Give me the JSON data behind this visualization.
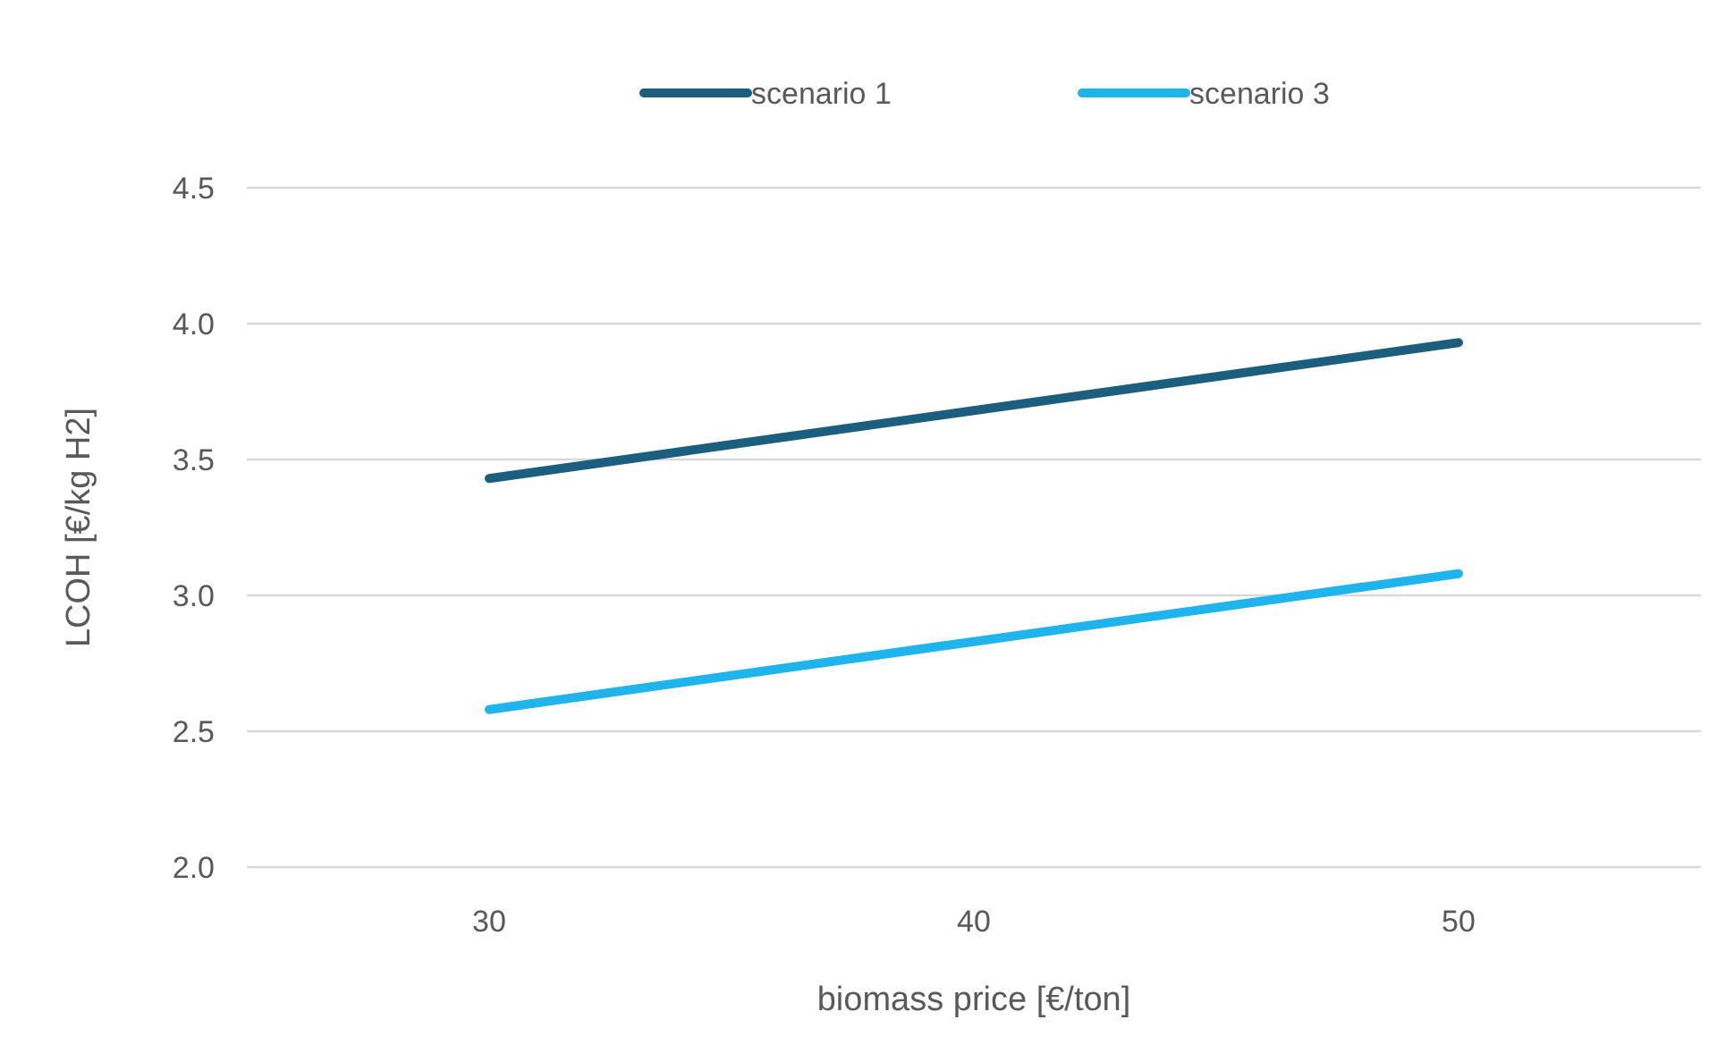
{
  "chart_data": {
    "type": "line",
    "xlabel": "biomass price [€/ton]",
    "ylabel": "LCOH [€/kg H2]",
    "categories": [
      "30",
      "40",
      "50"
    ],
    "series": [
      {
        "name": "scenario 1",
        "color": "#1b5e7e",
        "values": [
          3.43,
          3.68,
          3.93
        ]
      },
      {
        "name": "scenario 3",
        "color": "#1fb4ec",
        "values": [
          2.58,
          2.83,
          3.08
        ]
      }
    ],
    "ylim": [
      2,
      4.5
    ],
    "yticks": [
      {
        "value": 2,
        "label": "2.0"
      },
      {
        "value": 2.5,
        "label": "2.5"
      },
      {
        "value": 3,
        "label": "3.0"
      },
      {
        "value": 3.5,
        "label": "3.5"
      },
      {
        "value": 4,
        "label": "4.0"
      },
      {
        "value": 4.5,
        "label": "4.5"
      }
    ],
    "grid": "y",
    "legend": "top",
    "marker": "none",
    "line_style": "solid"
  }
}
